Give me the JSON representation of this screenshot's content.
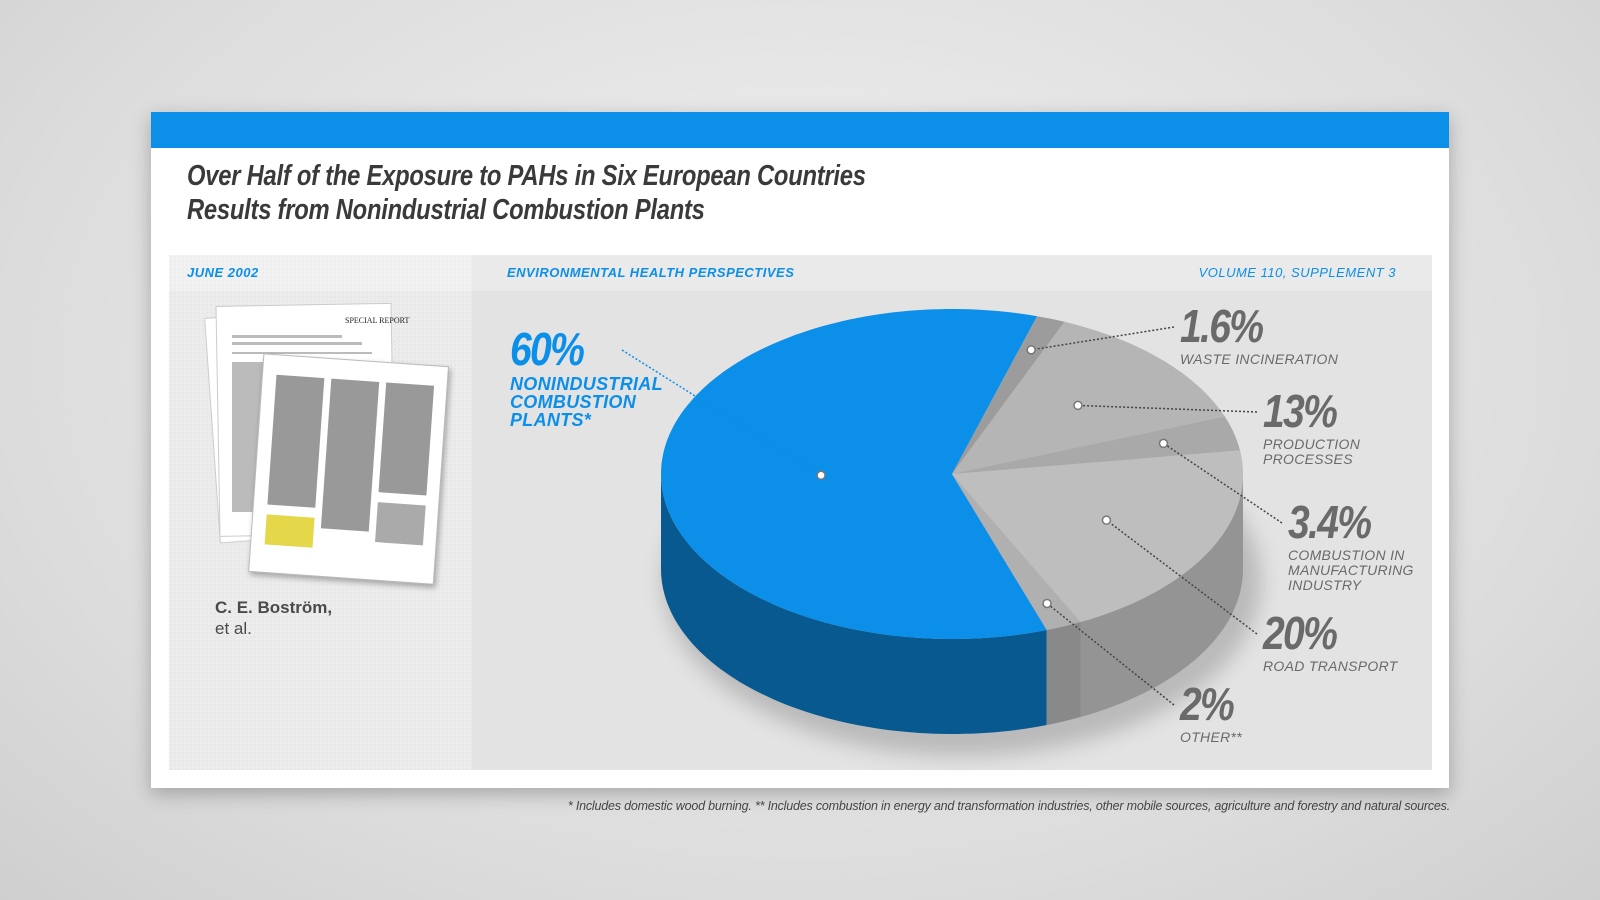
{
  "chart_data": {
    "type": "pie",
    "title": [
      "Over Half of the Exposure to PAHs in Six European Countries",
      "Results from Nonindustrial Combustion Plants"
    ],
    "date": "JUNE 2002",
    "journal": "ENVIRONMENTAL HEALTH PERSPECTIVES",
    "volume": "VOLUME 110, SUPPLEMENT 3",
    "paper_header": "SPECIAL REPORT",
    "author": "C. E. Boström,",
    "author_note": "et al.",
    "footnote": "* Includes domestic wood burning.  ** Includes combustion in energy and transformation industries, other mobile sources, agriculture and forestry and natural sources.",
    "categories": [
      "NONINDUSTRIAL COMBUSTION PLANTS*",
      "WASTE INCINERATION",
      "PRODUCTION PROCESSES",
      "COMBUSTION IN MANUFACTURING INDUSTRY",
      "ROAD TRANSPORT",
      "OTHER**"
    ],
    "values": [
      60,
      1.6,
      13,
      3.4,
      20,
      2
    ],
    "value_labels": [
      "60%",
      "1.6%",
      "13%",
      "3.4%",
      "20%",
      "2%"
    ],
    "colors": [
      "#0b8fe9",
      "#9c9c9c",
      "#b5b5b5",
      "#a9a9a9",
      "#bebebe",
      "#b0b0b0"
    ]
  }
}
